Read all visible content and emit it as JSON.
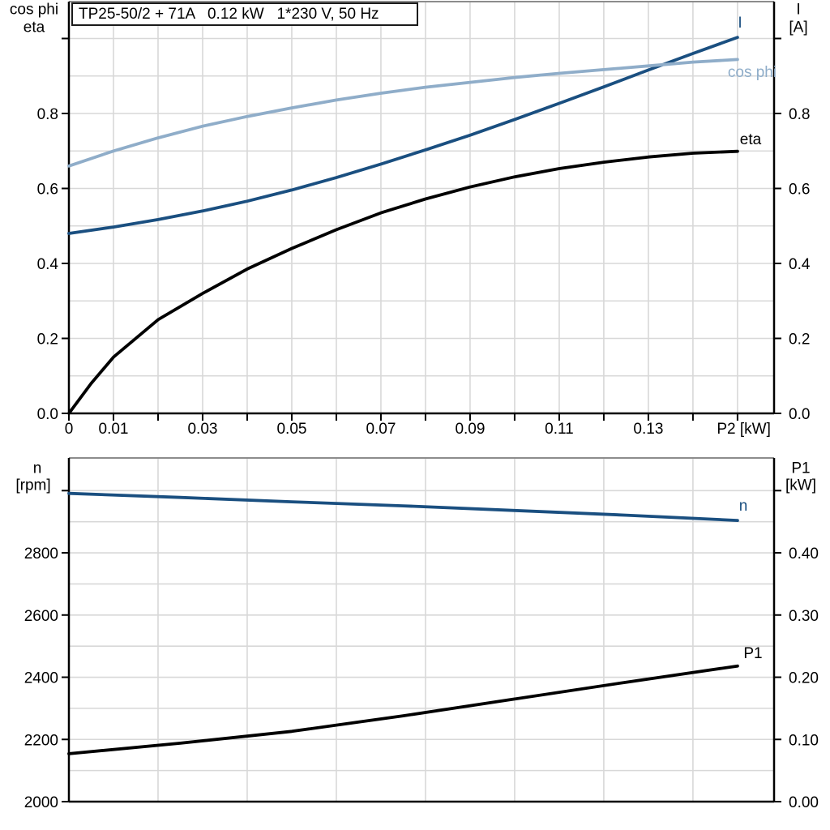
{
  "colors": {
    "dark_blue": "#1a4f80",
    "light_blue": "#8fadc9",
    "curve_black": "#000000",
    "grid": "#d8d8d8",
    "plot_border": "#8c8c8c",
    "axis": "#000000"
  },
  "chart_data": [
    {
      "id": "motor-electrical",
      "type": "line",
      "title": "TP25-50/2 + 71A   0.12 kW   1*230 V, 50 Hz",
      "xlabel": "P2 [kW]",
      "xlabel_at": 0.1514,
      "ylabel_left": [
        "cos phi",
        "eta"
      ],
      "ylabel_right": [
        "I",
        "[A]"
      ],
      "xlim": [
        0,
        0.1582
      ],
      "x_grid": [
        0.01,
        0.02,
        0.03,
        0.04,
        0.05,
        0.06,
        0.07,
        0.08,
        0.09,
        0.1,
        0.11,
        0.12,
        0.13,
        0.14,
        0.15
      ],
      "y_grid": [
        0.1,
        0.2,
        0.3,
        0.4,
        0.5,
        0.6,
        0.7,
        0.8,
        0.9,
        1.0
      ],
      "x_ticks": [
        0,
        0.01,
        0.02,
        0.03,
        0.04,
        0.05,
        0.06,
        0.07,
        0.08,
        0.09,
        0.1,
        0.11,
        0.12,
        0.13,
        0.14,
        0.15
      ],
      "x_labeled": [
        {
          "v": 0,
          "t": "0"
        },
        {
          "v": 0.01,
          "t": "0.01"
        },
        {
          "v": 0.03,
          "t": "0.03"
        },
        {
          "v": 0.05,
          "t": "0.05"
        },
        {
          "v": 0.07,
          "t": "0.07"
        },
        {
          "v": 0.09,
          "t": "0.09"
        },
        {
          "v": 0.11,
          "t": "0.11"
        },
        {
          "v": 0.13,
          "t": "0.13"
        }
      ],
      "axes": {
        "left": {
          "lim": [
            0,
            1.0984
          ],
          "ticks": [
            {
              "v": 0.0,
              "t": "0.0"
            },
            {
              "v": 0.2,
              "t": "0.2"
            },
            {
              "v": 0.4,
              "t": "0.4"
            },
            {
              "v": 0.6,
              "t": "0.6"
            },
            {
              "v": 0.8,
              "t": "0.8"
            },
            {
              "v": 1.0,
              "t": ""
            }
          ]
        },
        "right": {
          "lim": [
            0,
            1.0984
          ],
          "ticks": [
            {
              "v": 0.0,
              "t": "0.0"
            },
            {
              "v": 0.2,
              "t": "0.2"
            },
            {
              "v": 0.4,
              "t": "0.4"
            },
            {
              "v": 0.6,
              "t": "0.6"
            },
            {
              "v": 0.8,
              "t": "0.8"
            },
            {
              "v": 1.0,
              "t": ""
            }
          ]
        }
      },
      "series": [
        {
          "name": "I",
          "axis": "right",
          "color": "dark_blue",
          "x": [
            0,
            0.01,
            0.02,
            0.03,
            0.04,
            0.05,
            0.06,
            0.07,
            0.08,
            0.09,
            0.1,
            0.11,
            0.12,
            0.13,
            0.14,
            0.15
          ],
          "y": [
            0.48,
            0.497,
            0.517,
            0.54,
            0.566,
            0.596,
            0.629,
            0.665,
            0.703,
            0.742,
            0.784,
            0.827,
            0.871,
            0.916,
            0.96,
            1.003
          ]
        },
        {
          "name": "cos phi",
          "axis": "left",
          "color": "light_blue",
          "x": [
            0,
            0.01,
            0.02,
            0.03,
            0.04,
            0.05,
            0.06,
            0.07,
            0.08,
            0.09,
            0.1,
            0.11,
            0.12,
            0.13,
            0.14,
            0.15
          ],
          "y": [
            0.66,
            0.7,
            0.735,
            0.766,
            0.792,
            0.815,
            0.836,
            0.854,
            0.87,
            0.883,
            0.896,
            0.907,
            0.917,
            0.927,
            0.937,
            0.944
          ]
        },
        {
          "name": "eta",
          "axis": "left",
          "color": "curve_black",
          "x": [
            0,
            0.005,
            0.01,
            0.02,
            0.03,
            0.04,
            0.05,
            0.06,
            0.07,
            0.08,
            0.09,
            0.1,
            0.11,
            0.12,
            0.13,
            0.14,
            0.15
          ],
          "y": [
            0,
            0.08,
            0.15,
            0.25,
            0.32,
            0.385,
            0.44,
            0.49,
            0.535,
            0.572,
            0.604,
            0.631,
            0.653,
            0.67,
            0.684,
            0.694,
            0.699
          ]
        }
      ]
    },
    {
      "id": "speed-power",
      "type": "line",
      "title": "",
      "xlabel": "",
      "ylabel_left": [
        "n",
        "[rpm]"
      ],
      "ylabel_right": [
        "P1",
        "[kW]"
      ],
      "xlim": [
        0,
        0.1582
      ],
      "x_grid": [
        0.02,
        0.04,
        0.06,
        0.08,
        0.1,
        0.12,
        0.14
      ],
      "y_grid": [
        2100,
        2200,
        2300,
        2400,
        2500,
        2600,
        2700,
        2800,
        2900,
        3000
      ],
      "x_ticks": [],
      "x_labeled": [],
      "axes": {
        "left": {
          "lim": [
            2000,
            3105
          ],
          "ticks": [
            {
              "v": 2000,
              "t": "2000"
            },
            {
              "v": 2200,
              "t": "2200"
            },
            {
              "v": 2400,
              "t": "2400"
            },
            {
              "v": 2600,
              "t": "2600"
            },
            {
              "v": 2800,
              "t": "2800"
            },
            {
              "v": 3000,
              "t": ""
            }
          ]
        },
        "right": {
          "lim": [
            0,
            0.5525
          ],
          "ticks": [
            {
              "v": 0.0,
              "t": "0.00"
            },
            {
              "v": 0.1,
              "t": "0.10"
            },
            {
              "v": 0.2,
              "t": "0.20"
            },
            {
              "v": 0.3,
              "t": "0.30"
            },
            {
              "v": 0.4,
              "t": "0.40"
            },
            {
              "v": 0.5,
              "t": ""
            }
          ]
        }
      },
      "series": [
        {
          "name": "n",
          "axis": "left",
          "color": "dark_blue",
          "x": [
            0,
            0.025,
            0.05,
            0.075,
            0.1,
            0.125,
            0.15
          ],
          "y": [
            2991,
            2978,
            2964,
            2951,
            2936,
            2921,
            2904
          ]
        },
        {
          "name": "P1",
          "axis": "right",
          "color": "curve_black",
          "x": [
            0,
            0.025,
            0.05,
            0.075,
            0.1,
            0.125,
            0.15
          ],
          "y": [
            0.077,
            0.094,
            0.113,
            0.138,
            0.165,
            0.192,
            0.218
          ]
        }
      ]
    }
  ]
}
